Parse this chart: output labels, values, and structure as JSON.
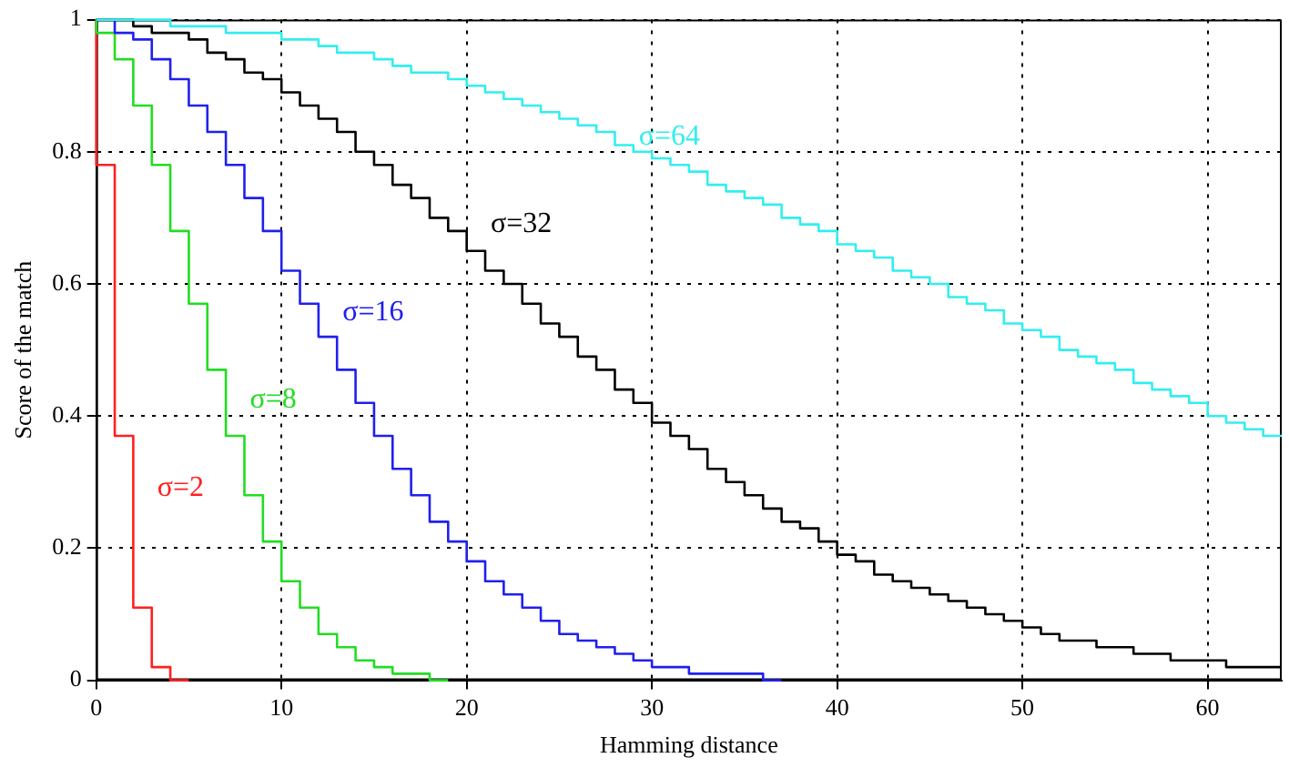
{
  "chart_data": {
    "type": "step",
    "xlabel": "Hamming distance",
    "ylabel": "Score of the match",
    "xlim": [
      0,
      64
    ],
    "xticks": [
      0,
      10,
      20,
      30,
      40,
      50,
      60
    ],
    "ylim": [
      0,
      1
    ],
    "yticks": [
      0,
      0.2,
      0.4,
      0.6,
      0.8,
      1
    ],
    "grid": true,
    "legend": false,
    "marker": "none",
    "line_style": "solid",
    "series": [
      {
        "name": "σ=2",
        "color": "#ff2020",
        "x": [
          0,
          1,
          2,
          3,
          4,
          5
        ],
        "values": [
          1,
          0.78,
          0.37,
          0.11,
          0.02,
          0
        ]
      },
      {
        "name": "σ=8",
        "color": "#22dd22",
        "x": [
          0,
          1,
          2,
          3,
          4,
          5,
          6,
          7,
          8,
          9,
          10,
          11,
          12,
          13,
          14,
          15,
          16,
          17,
          18,
          19
        ],
        "values": [
          1,
          0.98,
          0.94,
          0.87,
          0.78,
          0.68,
          0.57,
          0.47,
          0.37,
          0.28,
          0.21,
          0.15,
          0.11,
          0.07,
          0.05,
          0.03,
          0.02,
          0.01,
          0.01,
          0
        ]
      },
      {
        "name": "σ=16",
        "color": "#2020ee",
        "x": [
          0,
          1,
          2,
          3,
          4,
          5,
          6,
          7,
          8,
          9,
          10,
          11,
          12,
          13,
          14,
          15,
          16,
          17,
          18,
          19,
          20,
          21,
          22,
          23,
          24,
          25,
          26,
          27,
          28,
          29,
          30,
          31,
          32,
          33,
          34,
          35,
          36,
          37
        ],
        "values": [
          1,
          1,
          0.98,
          0.97,
          0.94,
          0.91,
          0.87,
          0.83,
          0.78,
          0.73,
          0.68,
          0.62,
          0.57,
          0.52,
          0.47,
          0.42,
          0.37,
          0.32,
          0.28,
          0.24,
          0.21,
          0.18,
          0.15,
          0.13,
          0.11,
          0.09,
          0.07,
          0.06,
          0.05,
          0.04,
          0.03,
          0.02,
          0.02,
          0.01,
          0.01,
          0.01,
          0.01,
          0
        ]
      },
      {
        "name": "σ=32",
        "color": "#000000",
        "x": [
          0,
          1,
          2,
          3,
          4,
          5,
          6,
          7,
          8,
          9,
          10,
          11,
          12,
          13,
          14,
          15,
          16,
          17,
          18,
          19,
          20,
          21,
          22,
          23,
          24,
          25,
          26,
          27,
          28,
          29,
          30,
          31,
          32,
          33,
          34,
          35,
          36,
          37,
          38,
          39,
          40,
          41,
          42,
          43,
          44,
          45,
          46,
          47,
          48,
          49,
          50,
          51,
          52,
          53,
          54,
          55,
          56,
          57,
          58,
          59,
          60,
          61,
          62,
          63,
          64
        ],
        "values": [
          1,
          1,
          1,
          0.99,
          0.98,
          0.98,
          0.97,
          0.95,
          0.94,
          0.92,
          0.91,
          0.89,
          0.87,
          0.85,
          0.83,
          0.8,
          0.78,
          0.75,
          0.73,
          0.7,
          0.68,
          0.65,
          0.62,
          0.6,
          0.57,
          0.54,
          0.52,
          0.49,
          0.47,
          0.44,
          0.42,
          0.39,
          0.37,
          0.35,
          0.32,
          0.3,
          0.28,
          0.26,
          0.24,
          0.23,
          0.21,
          0.19,
          0.18,
          0.16,
          0.15,
          0.14,
          0.13,
          0.12,
          0.11,
          0.1,
          0.09,
          0.08,
          0.07,
          0.06,
          0.06,
          0.05,
          0.05,
          0.04,
          0.04,
          0.03,
          0.03,
          0.03,
          0.02,
          0.02,
          0.02
        ]
      },
      {
        "name": "σ=64",
        "color": "#33eeee",
        "x": [
          0,
          1,
          2,
          3,
          4,
          5,
          6,
          7,
          8,
          9,
          10,
          11,
          12,
          13,
          14,
          15,
          16,
          17,
          18,
          19,
          20,
          21,
          22,
          23,
          24,
          25,
          26,
          27,
          28,
          29,
          30,
          31,
          32,
          33,
          34,
          35,
          36,
          37,
          38,
          39,
          40,
          41,
          42,
          43,
          44,
          45,
          46,
          47,
          48,
          49,
          50,
          51,
          52,
          53,
          54,
          55,
          56,
          57,
          58,
          59,
          60,
          61,
          62,
          63,
          64
        ],
        "values": [
          1,
          1,
          1,
          1,
          1,
          0.99,
          0.99,
          0.99,
          0.98,
          0.98,
          0.98,
          0.97,
          0.97,
          0.96,
          0.95,
          0.95,
          0.94,
          0.93,
          0.92,
          0.92,
          0.91,
          0.9,
          0.89,
          0.88,
          0.87,
          0.86,
          0.85,
          0.84,
          0.83,
          0.81,
          0.8,
          0.79,
          0.78,
          0.77,
          0.75,
          0.74,
          0.73,
          0.72,
          0.7,
          0.69,
          0.68,
          0.66,
          0.65,
          0.64,
          0.62,
          0.61,
          0.6,
          0.58,
          0.57,
          0.56,
          0.54,
          0.53,
          0.52,
          0.5,
          0.49,
          0.48,
          0.47,
          0.45,
          0.44,
          0.43,
          0.42,
          0.4,
          0.39,
          0.38,
          0.37
        ]
      }
    ]
  }
}
